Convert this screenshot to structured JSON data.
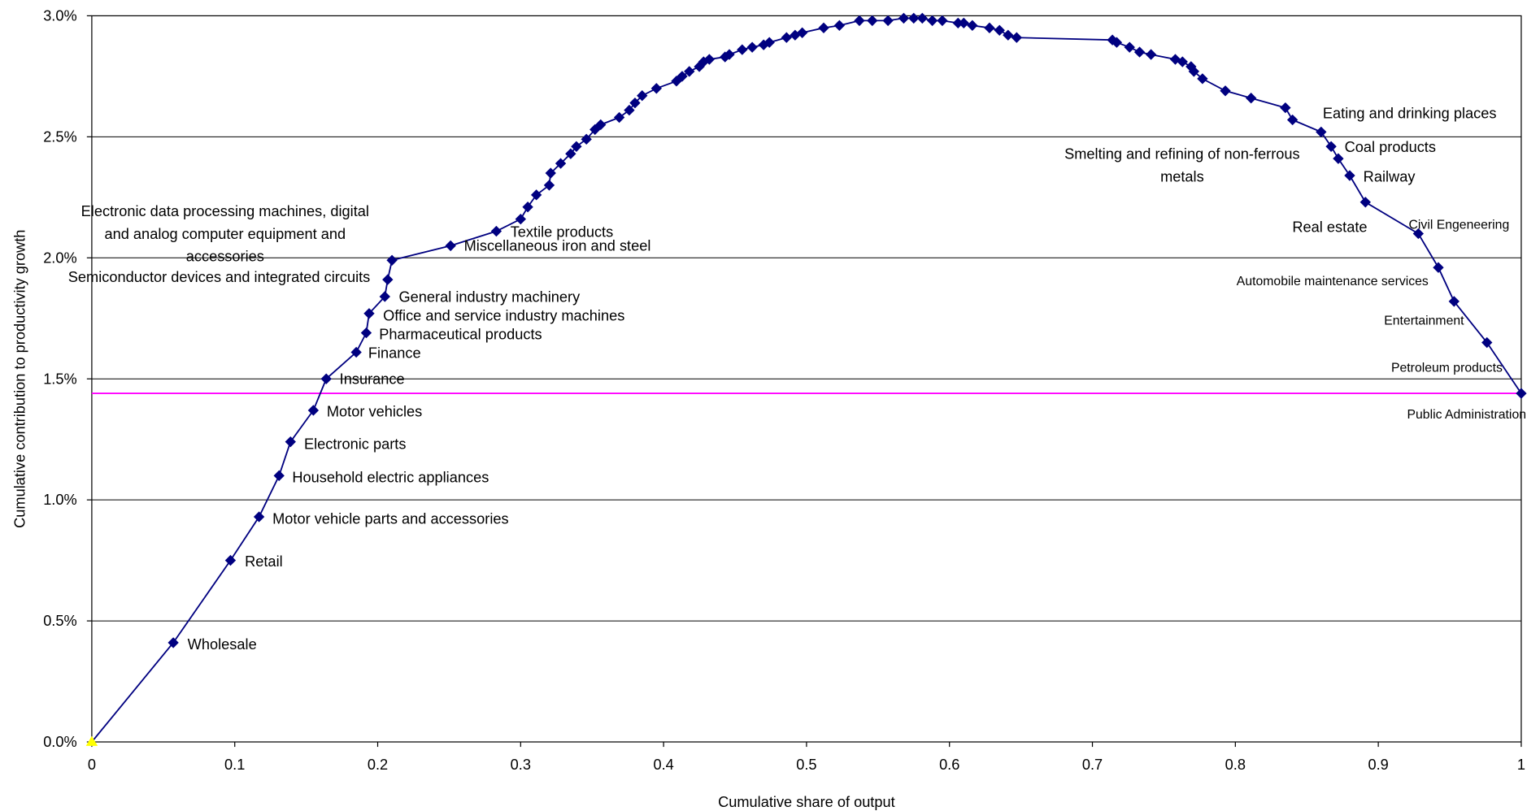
{
  "chart_data": {
    "type": "line",
    "x_label": "Cumulative share of output",
    "y_label": "Cumulative contribution to productivity growth",
    "xlim": [
      0,
      1
    ],
    "ylim": [
      0,
      3
    ],
    "xticks": [
      0,
      0.1,
      0.2,
      0.3,
      0.4,
      0.5,
      0.6,
      0.7,
      0.8,
      0.9,
      1
    ],
    "yticks": [
      {
        "value": 0,
        "label": "0.0%"
      },
      {
        "value": 0.5,
        "label": "0.5%"
      },
      {
        "value": 1,
        "label": "1.0%"
      },
      {
        "value": 1.5,
        "label": "1.5%"
      },
      {
        "value": 2,
        "label": "2.0%"
      },
      {
        "value": 2.5,
        "label": "2.5%"
      },
      {
        "value": 3,
        "label": "3.0%"
      }
    ],
    "grid": true,
    "reference_line": {
      "value": 1.44,
      "color": "#ff00ff"
    },
    "start_marker_color": "#ffff00",
    "series": [
      {
        "color": "#000080",
        "x": [
          0,
          0.057,
          0.097,
          0.117,
          0.131,
          0.139,
          0.155,
          0.164,
          0.185,
          0.192,
          0.194,
          0.205,
          0.207,
          0.21,
          0.251,
          0.283,
          0.3,
          0.305,
          0.311,
          0.32,
          0.321,
          0.328,
          0.335,
          0.339,
          0.346,
          0.352,
          0.356,
          0.369,
          0.376,
          0.38,
          0.385,
          0.395,
          0.409,
          0.413,
          0.418,
          0.425,
          0.428,
          0.432,
          0.443,
          0.446,
          0.455,
          0.462,
          0.47,
          0.474,
          0.486,
          0.492,
          0.497,
          0.512,
          0.523,
          0.537,
          0.546,
          0.557,
          0.568,
          0.575,
          0.581,
          0.588,
          0.595,
          0.606,
          0.61,
          0.616,
          0.628,
          0.635,
          0.641,
          0.647,
          0.714,
          0.717,
          0.726,
          0.733,
          0.741,
          0.758,
          0.763,
          0.769,
          0.771,
          0.777,
          0.793,
          0.811,
          0.835,
          0.84,
          0.86,
          0.867,
          0.872,
          0.88,
          0.891,
          0.928,
          0.942,
          0.953,
          0.976,
          1
        ],
        "y": [
          0,
          0.41,
          0.75,
          0.93,
          1.1,
          1.24,
          1.37,
          1.5,
          1.61,
          1.69,
          1.77,
          1.84,
          1.91,
          1.99,
          2.05,
          2.11,
          2.16,
          2.21,
          2.26,
          2.3,
          2.35,
          2.39,
          2.43,
          2.46,
          2.49,
          2.53,
          2.55,
          2.58,
          2.61,
          2.64,
          2.67,
          2.7,
          2.73,
          2.75,
          2.77,
          2.79,
          2.81,
          2.82,
          2.83,
          2.84,
          2.86,
          2.87,
          2.88,
          2.89,
          2.91,
          2.92,
          2.93,
          2.95,
          2.96,
          2.98,
          2.98,
          2.98,
          2.99,
          2.99,
          2.99,
          2.98,
          2.98,
          2.97,
          2.97,
          2.96,
          2.95,
          2.94,
          2.92,
          2.91,
          2.9,
          2.89,
          2.87,
          2.85,
          2.84,
          2.82,
          2.81,
          2.79,
          2.77,
          2.74,
          2.69,
          2.66,
          2.62,
          2.57,
          2.52,
          2.46,
          2.41,
          2.34,
          2.23,
          2.1,
          1.96,
          1.82,
          1.65,
          1.44
        ],
        "labels": [
          null,
          "Wholesale",
          "Retail",
          "Motor vehicle parts and accessories",
          "Household electric appliances",
          "Electronic parts",
          "Motor vehicles",
          "Insurance",
          "Finance",
          "Pharmaceutical products",
          "Office and service industry machines",
          "General industry machinery",
          "Semiconductor devices and integrated circuits",
          "Electronic data processing machines, digital and analog computer equipment and accessories",
          "Miscellaneous iron and steel",
          "Textile products",
          null,
          null,
          null,
          null,
          null,
          null,
          null,
          null,
          null,
          null,
          null,
          null,
          null,
          null,
          null,
          null,
          null,
          null,
          null,
          null,
          null,
          null,
          null,
          null,
          null,
          null,
          null,
          null,
          null,
          null,
          null,
          null,
          null,
          null,
          null,
          null,
          null,
          null,
          null,
          null,
          null,
          null,
          null,
          null,
          null,
          null,
          null,
          null,
          null,
          null,
          null,
          null,
          null,
          null,
          null,
          null,
          null,
          null,
          null,
          null,
          null,
          null,
          "Eating and drinking places",
          "Coal products",
          "Smelting and refining of non-ferrous metals",
          "Railway",
          "Real estate",
          "Civil Engeneering",
          "Automobile maintenance services",
          "Entertainment",
          "Petroleum products",
          "Public Administration"
        ]
      }
    ]
  }
}
